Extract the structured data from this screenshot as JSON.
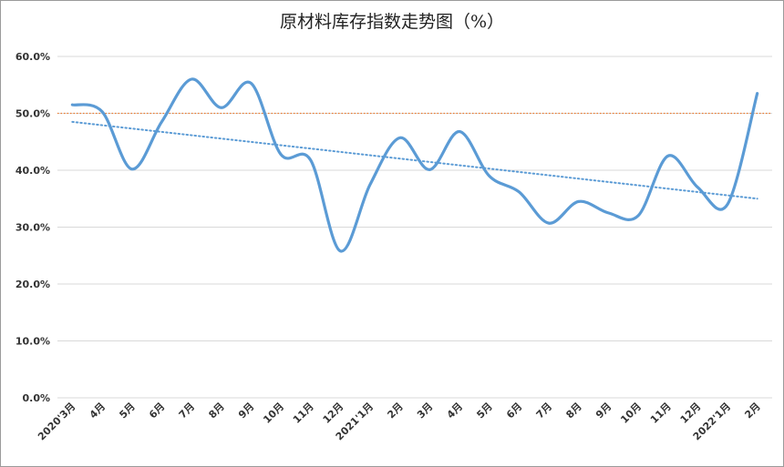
{
  "chart_data": {
    "type": "line",
    "title": "原材料库存指数走势图（%）",
    "categories": [
      "2020'3月",
      "4月",
      "5月",
      "6月",
      "7月",
      "8月",
      "9月",
      "10月",
      "11月",
      "12月",
      "2021'1月",
      "2月",
      "3月",
      "4月",
      "5月",
      "6月",
      "7月",
      "8月",
      "9月",
      "10月",
      "11月",
      "12月",
      "2022'1月",
      "2月"
    ],
    "series": [
      {
        "values": [
          51.5,
          50.3,
          40.2,
          48.5,
          56.0,
          51.0,
          55.3,
          42.8,
          41.8,
          25.8,
          37.5,
          45.7,
          40.1,
          46.8,
          39.0,
          36.2,
          30.7,
          34.5,
          32.5,
          32.0,
          42.5,
          37.0,
          34.0,
          53.5
        ],
        "color": "#5b9bd5"
      }
    ],
    "reference_line": {
      "value": 50.0,
      "color": "#ed7d31",
      "style": "dotted"
    },
    "trendline": {
      "start": 48.5,
      "end": 35.0,
      "color": "#5b9bd5",
      "style": "dotted"
    },
    "y_ticks": [
      "0.0%",
      "10.0%",
      "20.0%",
      "30.0%",
      "40.0%",
      "50.0%",
      "60.0%"
    ],
    "ylim": [
      0,
      60
    ],
    "grid": true,
    "legend": "none"
  }
}
